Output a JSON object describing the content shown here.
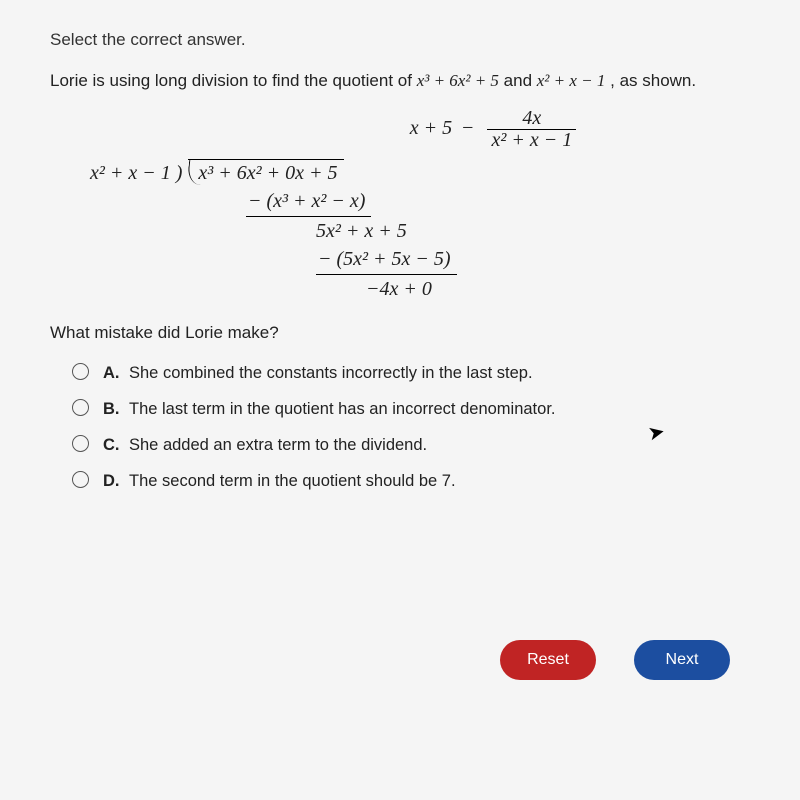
{
  "instruction": "Select the correct answer.",
  "prompt": {
    "prefix": "Lorie is using long division to find the quotient of ",
    "dividend_expr": "x³ + 6x² + 5",
    "mid": " and ",
    "divisor_expr": "x² + x − 1",
    "suffix": ", as shown."
  },
  "quotient": {
    "term1": "x + 5",
    "minus": "−",
    "frac_num": "4x",
    "frac_den": "x² + x − 1"
  },
  "longdiv": {
    "divisor": "x² + x − 1 )",
    "dividend": "x³ + 6x² + 0x + 5",
    "row1": "− (x³ + x² − x)",
    "row2": "5x² + x + 5",
    "row3": "− (5x² + 5x − 5)",
    "row4": "−4x + 0"
  },
  "subquestion": "What mistake did Lorie make?",
  "choices": [
    {
      "label": "A.",
      "text": "She combined the constants incorrectly in the last step."
    },
    {
      "label": "B.",
      "text": "The last term in the quotient has an incorrect denominator."
    },
    {
      "label": "C.",
      "text": "She added an extra term to the dividend."
    },
    {
      "label": "D.",
      "text": "The second term in the quotient should be 7."
    }
  ],
  "buttons": {
    "reset": "Reset",
    "next": "Next"
  },
  "colors": {
    "reset_btn": "#c02424",
    "next_btn": "#1c4ea0",
    "text": "#222222",
    "bg": "#f5f5f5"
  }
}
